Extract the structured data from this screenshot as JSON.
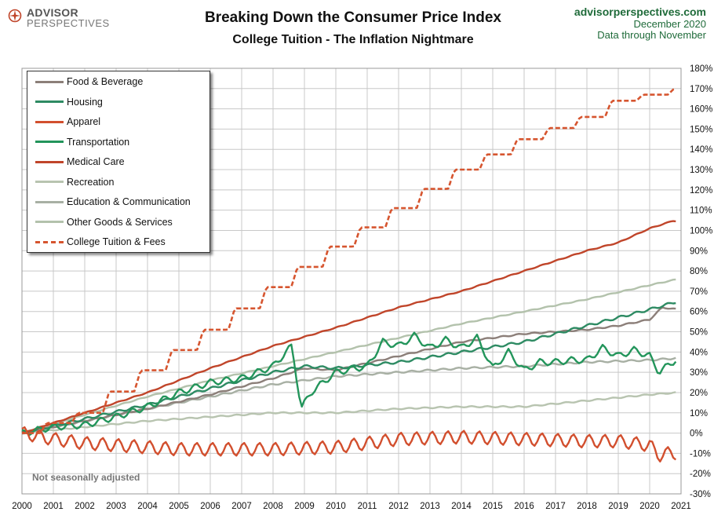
{
  "logo": {
    "line1": "ADVISOR",
    "line2": "PERSPECTIVES"
  },
  "header": {
    "title": "Breaking Down the Consumer Price Index",
    "subtitle": "College Tuition  - The Inflation Nightmare"
  },
  "source": {
    "site": "advisorperspectives.com",
    "date": "December 2020",
    "through": "Data through November"
  },
  "note": "Not seasonally adjusted",
  "colors": {
    "food": "#8c7f79",
    "housing": "#2e8b63",
    "apparel": "#d24f2e",
    "transportation": "#23955b",
    "medical": "#c0452a",
    "recreation": "#b8c4b0",
    "education": "#a8b0a4",
    "other": "#b3c2ac",
    "tuition": "#d6552f",
    "grid": "#c8c8c8"
  },
  "chart_data": {
    "type": "line",
    "title": "Breaking Down the Consumer Price Index",
    "subtitle": "College Tuition  - The Inflation Nightmare",
    "xlabel": "",
    "ylabel": "",
    "xlim": [
      2000,
      2021
    ],
    "ylim": [
      -30,
      180
    ],
    "x_ticks": [
      "2000",
      "2001",
      "2002",
      "2003",
      "2004",
      "2005",
      "2006",
      "2007",
      "2008",
      "2009",
      "2010",
      "2011",
      "2012",
      "2013",
      "2014",
      "2015",
      "2016",
      "2017",
      "2018",
      "2019",
      "2020",
      "2021"
    ],
    "y_ticks": [
      "-30%",
      "-20%",
      "-10%",
      "0%",
      "10%",
      "20%",
      "30%",
      "40%",
      "50%",
      "60%",
      "70%",
      "80%",
      "90%",
      "100%",
      "110%",
      "120%",
      "130%",
      "140%",
      "150%",
      "160%",
      "170%",
      "180%"
    ],
    "y_axis_position": "right",
    "grid": true,
    "legend_position": "top-left",
    "series": [
      {
        "name": "Food & Beverage",
        "key": "food",
        "x": [
          2000,
          2002,
          2004,
          2006,
          2008,
          2009,
          2010,
          2012,
          2014,
          2016,
          2018,
          2019,
          2020,
          2020.4,
          2020.9
        ],
        "y": [
          0,
          6,
          12,
          19,
          27,
          32,
          31,
          38,
          45,
          49,
          51,
          53,
          56,
          62,
          61
        ]
      },
      {
        "name": "Housing",
        "key": "housing",
        "x": [
          2000,
          2002,
          2004,
          2006,
          2008,
          2009,
          2010,
          2012,
          2014,
          2016,
          2018,
          2019,
          2020,
          2020.9
        ],
        "y": [
          0,
          7,
          14,
          22,
          30,
          33,
          32,
          35,
          40,
          45,
          53,
          57,
          61,
          65
        ]
      },
      {
        "name": "Apparel",
        "key": "apparel",
        "x": [
          2000,
          2001,
          2002,
          2003,
          2004,
          2005,
          2006,
          2008,
          2010,
          2012,
          2014,
          2016,
          2018,
          2019,
          2020,
          2020.3,
          2020.6,
          2020.9
        ],
        "y": [
          0,
          -3,
          -5,
          -6,
          -7,
          -8,
          -8,
          -8,
          -7,
          -3,
          -2,
          -3,
          -4,
          -4,
          -6,
          -11,
          -10,
          -10
        ]
      },
      {
        "name": "Transportation",
        "key": "transportation",
        "x": [
          2000,
          2001,
          2002,
          2003,
          2004,
          2005,
          2006,
          2007,
          2008,
          2008.6,
          2008.9,
          2009.2,
          2010,
          2011,
          2011.5,
          2012,
          2012.5,
          2013,
          2013.5,
          2014,
          2014.5,
          2015,
          2015.5,
          2016,
          2016.5,
          2017,
          2017.5,
          2018,
          2018.5,
          2019,
          2019.5,
          2020,
          2020.3,
          2020.9
        ],
        "y": [
          0,
          3,
          4,
          8,
          13,
          20,
          25,
          27,
          33,
          43,
          12,
          20,
          30,
          33,
          45,
          43,
          48,
          42,
          46,
          42,
          47,
          32,
          40,
          31,
          35,
          35,
          36,
          36,
          42,
          38,
          41,
          38,
          30,
          37
        ]
      },
      {
        "name": "Medical Care",
        "key": "medical",
        "x": [
          2000,
          2002,
          2004,
          2006,
          2008,
          2010,
          2012,
          2014,
          2016,
          2018,
          2019,
          2020,
          2020.8,
          2020.9
        ],
        "y": [
          0,
          10,
          20,
          32,
          43,
          52,
          62,
          70,
          80,
          90,
          94,
          101,
          105,
          104
        ]
      },
      {
        "name": "Recreation",
        "key": "recreation",
        "x": [
          2000,
          2002,
          2004,
          2006,
          2008,
          2010,
          2012,
          2014,
          2016,
          2018,
          2020,
          2020.9
        ],
        "y": [
          0,
          3,
          6,
          8,
          10,
          10,
          12,
          13,
          13,
          16,
          19,
          20
        ]
      },
      {
        "name": "Education & Communication",
        "key": "education",
        "x": [
          2000,
          2002,
          2004,
          2006,
          2008,
          2010,
          2012,
          2014,
          2016,
          2018,
          2020,
          2020.9
        ],
        "y": [
          0,
          6,
          12,
          18,
          24,
          28,
          30,
          32,
          33,
          35,
          36,
          37
        ]
      },
      {
        "name": "Other Goods & Services",
        "key": "other",
        "x": [
          2000,
          2002,
          2004,
          2006,
          2008,
          2010,
          2012,
          2014,
          2016,
          2018,
          2020,
          2020.9
        ],
        "y": [
          0,
          9,
          18,
          26,
          33,
          40,
          47,
          54,
          60,
          66,
          73,
          76
        ]
      },
      {
        "name": "College Tuition & Fees",
        "key": "tuition",
        "x": [
          2000,
          2002,
          2004,
          2006,
          2008,
          2010,
          2012,
          2014,
          2016,
          2018,
          2019,
          2020,
          2020.9
        ],
        "y": [
          0,
          10,
          31,
          51,
          72,
          92,
          111,
          130,
          145,
          156,
          164,
          167,
          170
        ]
      }
    ]
  },
  "legend": [
    {
      "label": "Food & Beverage",
      "key": "food",
      "dash": false
    },
    {
      "label": "Housing",
      "key": "housing",
      "dash": false
    },
    {
      "label": "Apparel",
      "key": "apparel",
      "dash": false
    },
    {
      "label": "Transportation",
      "key": "transportation",
      "dash": false
    },
    {
      "label": "Medical Care",
      "key": "medical",
      "dash": false
    },
    {
      "label": "Recreation",
      "key": "recreation",
      "dash": false
    },
    {
      "label": "Education & Communication",
      "key": "education",
      "dash": false
    },
    {
      "label": "Other Goods & Services",
      "key": "other",
      "dash": false
    },
    {
      "label": "College Tuition & Fees",
      "key": "tuition",
      "dash": true
    }
  ]
}
